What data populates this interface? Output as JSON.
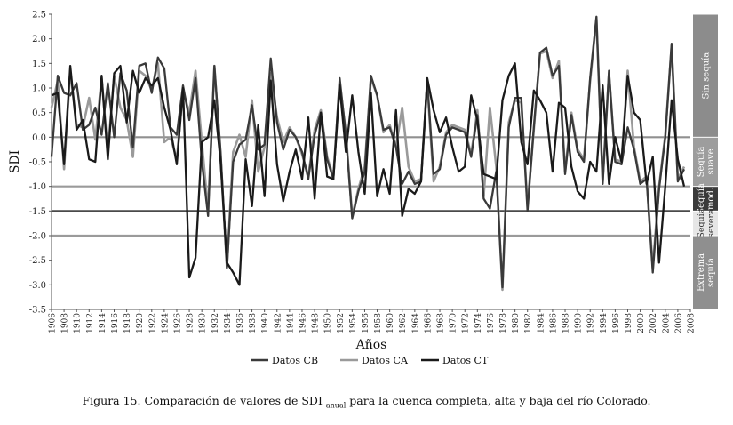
{
  "chart_data": {
    "type": "line",
    "title": "",
    "xlabel": "Años",
    "ylabel": "SDI",
    "ylim": [
      -3.5,
      2.5
    ],
    "xlim": [
      1906,
      2008
    ],
    "yticks": [
      "2.5",
      "2.0",
      "1.5",
      "1.0",
      "0.5",
      "0.0",
      "-0.5",
      "-1.0",
      "-1.5",
      "-2.0",
      "-2.5",
      "-3.0",
      "-3.5"
    ],
    "xticks": [
      "1906",
      "1908",
      "1910",
      "1912",
      "1914",
      "1916",
      "1918",
      "1920",
      "1922",
      "1924",
      "1926",
      "1928",
      "1930",
      "1932",
      "1934",
      "1936",
      "1938",
      "1940",
      "1942",
      "1944",
      "1946",
      "1948",
      "1950",
      "1952",
      "1954",
      "1956",
      "1958",
      "1960",
      "1962",
      "1964",
      "1966",
      "1968",
      "1970",
      "1972",
      "1974",
      "1976",
      "1978",
      "1980",
      "1982",
      "1984",
      "1986",
      "1988",
      "1990",
      "1992",
      "1994",
      "1996",
      "1998",
      "2000",
      "2002",
      "2004",
      "2006",
      "2008"
    ],
    "threshold_lines": [
      0,
      -1,
      -1.5,
      -2
    ],
    "legend_position": "bottom",
    "categories_bands": [
      {
        "label": [
          "Sin sequía"
        ],
        "from": 0,
        "to": 2.5
      },
      {
        "label": [
          "Sequía",
          "suave"
        ],
        "from": -1,
        "to": 0
      },
      {
        "label": [
          "Sequía",
          "mod."
        ],
        "from": -1.5,
        "to": -1
      },
      {
        "label": [
          "Sequía",
          "severa"
        ],
        "from": -2,
        "to": -1.5
      },
      {
        "label": [
          "Extrema",
          "sequía"
        ],
        "from": -3.5,
        "to": -2
      }
    ],
    "series": [
      {
        "name": "Datos CB",
        "color": "#3a3a3a",
        "x": [
          1906,
          1907,
          1908,
          1909,
          1910,
          1911,
          1912,
          1913,
          1914,
          1915,
          1916,
          1917,
          1918,
          1919,
          1920,
          1921,
          1922,
          1923,
          1924,
          1925,
          1926,
          1927,
          1928,
          1929,
          1930,
          1931,
          1932,
          1933,
          1934,
          1935,
          1936,
          1937,
          1938,
          1939,
          1940,
          1941,
          1942,
          1943,
          1944,
          1945,
          1946,
          1947,
          1948,
          1949,
          1950,
          1951,
          1952,
          1953,
          1954,
          1955,
          1956,
          1957,
          1958,
          1959,
          1960,
          1961,
          1962,
          1963,
          1964,
          1965,
          1966,
          1967,
          1968,
          1969,
          1970,
          1971,
          1972,
          1973,
          1974,
          1975,
          1976,
          1977,
          1978,
          1979,
          1980,
          1981,
          1982,
          1983,
          1984,
          1985,
          1986,
          1987,
          1988,
          1989,
          1990,
          1991,
          1992,
          1993,
          1994,
          1995,
          1996,
          1997,
          1998,
          1999,
          2000,
          2001,
          2002,
          2003,
          2004,
          2005,
          2006,
          2007
        ],
        "values": [
          -0.4,
          1.25,
          0.9,
          0.85,
          1.1,
          0.15,
          0.25,
          0.6,
          0.05,
          1.1,
          0.0,
          1.3,
          0.95,
          -0.2,
          1.45,
          1.5,
          0.9,
          1.62,
          1.4,
          0.2,
          0.05,
          1.05,
          0.35,
          1.2,
          -0.5,
          -1.6,
          1.45,
          -0.3,
          -2.65,
          -0.5,
          -0.15,
          -0.05,
          0.65,
          -0.25,
          -0.15,
          1.6,
          0.3,
          -0.25,
          0.15,
          0.0,
          -0.3,
          -0.85,
          0.05,
          0.5,
          -0.45,
          -0.85,
          1.2,
          0.05,
          -1.65,
          -1.1,
          -0.7,
          1.25,
          0.85,
          0.15,
          0.2,
          -0.2,
          -0.95,
          -0.7,
          -0.95,
          -0.9,
          1.15,
          -0.75,
          -0.65,
          0.05,
          0.2,
          0.15,
          0.1,
          -0.4,
          0.45,
          -1.25,
          -1.45,
          -0.7,
          -3.05,
          0.2,
          0.8,
          0.8,
          -1.5,
          0.2,
          1.72,
          1.82,
          1.25,
          1.45,
          -0.75,
          0.45,
          -0.3,
          -0.5,
          1.2,
          2.45,
          -0.95,
          1.35,
          -0.5,
          -0.55,
          0.2,
          -0.25,
          -0.95,
          -0.85,
          -2.75,
          -1.05,
          0.0,
          1.9,
          -0.9,
          -0.65
        ]
      },
      {
        "name": "Datos CA",
        "color": "#9a9a9a",
        "x": [
          1906,
          1907,
          1908,
          1909,
          1910,
          1911,
          1912,
          1913,
          1914,
          1915,
          1916,
          1917,
          1918,
          1919,
          1920,
          1921,
          1922,
          1923,
          1924,
          1925,
          1926,
          1927,
          1928,
          1929,
          1930,
          1931,
          1932,
          1933,
          1934,
          1935,
          1936,
          1937,
          1938,
          1939,
          1940,
          1941,
          1942,
          1943,
          1944,
          1945,
          1946,
          1947,
          1948,
          1949,
          1950,
          1951,
          1952,
          1953,
          1954,
          1955,
          1956,
          1957,
          1958,
          1959,
          1960,
          1961,
          1962,
          1963,
          1964,
          1965,
          1966,
          1967,
          1968,
          1969,
          1970,
          1971,
          1972,
          1973,
          1974,
          1975,
          1976,
          1977,
          1978,
          1979,
          1980,
          1981,
          1982,
          1983,
          1984,
          1985,
          1986,
          1987,
          1988,
          1989,
          1990,
          1991,
          1992,
          1993,
          1994,
          1995,
          1996,
          1997,
          1998,
          1999,
          2000,
          2001,
          2002,
          2003,
          2004,
          2005,
          2006,
          2007
        ],
        "values": [
          0.6,
          1.15,
          -0.65,
          1.35,
          0.25,
          0.2,
          0.8,
          -0.05,
          1.2,
          -0.3,
          1.25,
          0.6,
          0.35,
          -0.4,
          1.35,
          1.25,
          0.95,
          1.5,
          -0.1,
          0.0,
          -0.45,
          0.95,
          0.5,
          1.35,
          -0.1,
          -1.5,
          1.45,
          -0.4,
          -2.65,
          -0.3,
          0.05,
          -0.4,
          0.75,
          -0.7,
          -0.2,
          1.3,
          0.4,
          -0.1,
          0.2,
          0.0,
          -0.35,
          -0.8,
          0.15,
          0.55,
          -0.4,
          -0.8,
          1.1,
          0.1,
          -1.6,
          -1.05,
          -0.6,
          1.2,
          0.85,
          0.1,
          0.25,
          -0.2,
          0.6,
          -0.6,
          -0.9,
          -0.85,
          1.1,
          -0.9,
          -0.6,
          0.1,
          0.25,
          0.2,
          0.15,
          -0.35,
          0.55,
          -1.2,
          0.6,
          -0.6,
          -3.1,
          0.3,
          0.75,
          0.7,
          -1.4,
          0.15,
          1.7,
          1.75,
          1.2,
          1.55,
          -0.7,
          0.5,
          -0.25,
          -0.45,
          1.15,
          2.4,
          -0.9,
          1.3,
          -0.45,
          -0.5,
          1.35,
          -0.2,
          -0.9,
          -0.8,
          -2.65,
          -1.0,
          0.05,
          1.85,
          -0.85,
          -0.6
        ]
      },
      {
        "name": "Datos CT",
        "color": "#1a1a1a",
        "x": [
          1906,
          1907,
          1908,
          1909,
          1910,
          1911,
          1912,
          1913,
          1914,
          1915,
          1916,
          1917,
          1918,
          1919,
          1920,
          1921,
          1922,
          1923,
          1924,
          1925,
          1926,
          1927,
          1928,
          1929,
          1930,
          1931,
          1932,
          1933,
          1934,
          1935,
          1936,
          1937,
          1938,
          1939,
          1940,
          1941,
          1942,
          1943,
          1944,
          1945,
          1946,
          1947,
          1948,
          1949,
          1950,
          1951,
          1952,
          1953,
          1954,
          1955,
          1956,
          1957,
          1958,
          1959,
          1960,
          1961,
          1962,
          1963,
          1964,
          1965,
          1966,
          1967,
          1968,
          1969,
          1970,
          1971,
          1972,
          1973,
          1974,
          1975,
          1976,
          1977,
          1978,
          1979,
          1980,
          1981,
          1982,
          1983,
          1984,
          1985,
          1986,
          1987,
          1988,
          1989,
          1990,
          1991,
          1992,
          1993,
          1994,
          1995,
          1996,
          1997,
          1998,
          1999,
          2000,
          2001,
          2002,
          2003,
          2004,
          2005,
          2006,
          2007
        ],
        "values": [
          0.85,
          0.9,
          -0.55,
          1.45,
          0.15,
          0.35,
          -0.45,
          -0.5,
          1.25,
          -0.45,
          1.3,
          1.45,
          0.3,
          1.35,
          0.9,
          1.2,
          1.05,
          1.2,
          0.6,
          0.15,
          -0.55,
          1.0,
          -2.85,
          -2.45,
          -0.1,
          0.0,
          0.75,
          -0.5,
          -2.55,
          -2.75,
          -3.0,
          -0.45,
          -1.4,
          0.25,
          -1.2,
          1.15,
          -0.55,
          -1.3,
          -0.7,
          -0.25,
          -0.85,
          0.4,
          -1.25,
          0.5,
          -0.8,
          -0.85,
          1.05,
          -0.3,
          0.85,
          -0.3,
          -1.15,
          0.9,
          -1.2,
          -0.65,
          -1.15,
          0.55,
          -1.6,
          -1.05,
          -1.15,
          -0.9,
          1.2,
          0.55,
          0.1,
          0.4,
          -0.2,
          -0.7,
          -0.6,
          0.85,
          0.35,
          -0.75,
          -0.8,
          -0.85,
          0.75,
          1.25,
          1.5,
          -0.1,
          -0.55,
          0.95,
          0.75,
          0.5,
          -0.7,
          0.7,
          0.6,
          -0.6,
          -1.1,
          -1.25,
          -0.5,
          -0.7,
          1.05,
          -0.95,
          0.0,
          -0.5,
          1.25,
          0.5,
          0.35,
          -0.95,
          -0.4,
          -2.55,
          -1.0,
          0.75,
          -0.45,
          -1.0
        ]
      }
    ]
  },
  "caption": {
    "prefix": "Figura 15. Comparación de valores de SDI",
    "subscript": "anual",
    "suffix": "para la cuenca completa, alta y baja del río Colorado."
  }
}
